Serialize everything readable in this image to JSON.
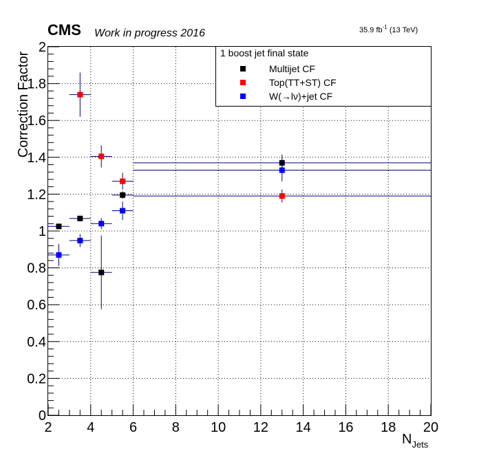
{
  "header": {
    "experiment": "CMS",
    "status": "Work in progress 2016",
    "lumi_value": "35.9 fb",
    "lumi_exp": "-1",
    "lumi_energy": " (13 TeV)"
  },
  "legend": {
    "title": "1 boost jet final state",
    "placement": "top-right"
  },
  "chart_data": {
    "type": "scatter",
    "xlabel": "N",
    "xlabel_sub": "Jets",
    "ylabel": "Correction Factor",
    "xlim": [
      2,
      20
    ],
    "ylim": [
      0,
      2
    ],
    "xticks": [
      2,
      4,
      6,
      8,
      10,
      12,
      14,
      16,
      18,
      20
    ],
    "xtick_labels": [
      "2",
      "4",
      "6",
      "8",
      "10",
      "12",
      "14",
      "16",
      "18",
      "20"
    ],
    "yticks": [
      0,
      0.2,
      0.4,
      0.6,
      0.8,
      1,
      1.2,
      1.4,
      1.6,
      1.8,
      2
    ],
    "ytick_labels": [
      "0",
      "0.2",
      "0.4",
      "0.6",
      "0.8",
      "1",
      "1.2",
      "1.4",
      "1.6",
      "1.8",
      "2"
    ],
    "grid": true,
    "series": [
      {
        "name": "Multijet CF",
        "color": "#000000",
        "points": [
          {
            "x": 2.5,
            "y": 1.025,
            "xerr": 0.5,
            "yerr": 0.01
          },
          {
            "x": 3.5,
            "y": 1.068,
            "xerr": 0.5,
            "yerr": 0.01
          },
          {
            "x": 4.5,
            "y": 0.775,
            "xerr": 0.5,
            "yerr": 0.2
          },
          {
            "x": 5.5,
            "y": 1.195,
            "xerr": 0.5,
            "yerr": 0.02
          },
          {
            "x": 13,
            "y": 1.37,
            "xerr": 7,
            "yerr": 0.045
          }
        ]
      },
      {
        "name": "Top(TT+ST) CF",
        "color": "#ff0000",
        "points": [
          {
            "x": 3.5,
            "y": 1.74,
            "xerr": 0.5,
            "yerr": 0.12
          },
          {
            "x": 4.5,
            "y": 1.405,
            "xerr": 0.5,
            "yerr": 0.06
          },
          {
            "x": 5.5,
            "y": 1.27,
            "xerr": 0.5,
            "yerr": 0.045
          },
          {
            "x": 13,
            "y": 1.19,
            "xerr": 7,
            "yerr": 0.035
          }
        ]
      },
      {
        "name": "W(→lν)+jet CF",
        "color": "#0000ff",
        "points": [
          {
            "x": 2.5,
            "y": 0.87,
            "xerr": 0.5,
            "yerr": 0.06
          },
          {
            "x": 3.5,
            "y": 0.948,
            "xerr": 0.5,
            "yerr": 0.035
          },
          {
            "x": 4.5,
            "y": 1.04,
            "xerr": 0.5,
            "yerr": 0.03
          },
          {
            "x": 5.5,
            "y": 1.11,
            "xerr": 0.5,
            "yerr": 0.05
          },
          {
            "x": 13,
            "y": 1.33,
            "xerr": 7,
            "yerr": 0.06
          }
        ]
      }
    ]
  }
}
